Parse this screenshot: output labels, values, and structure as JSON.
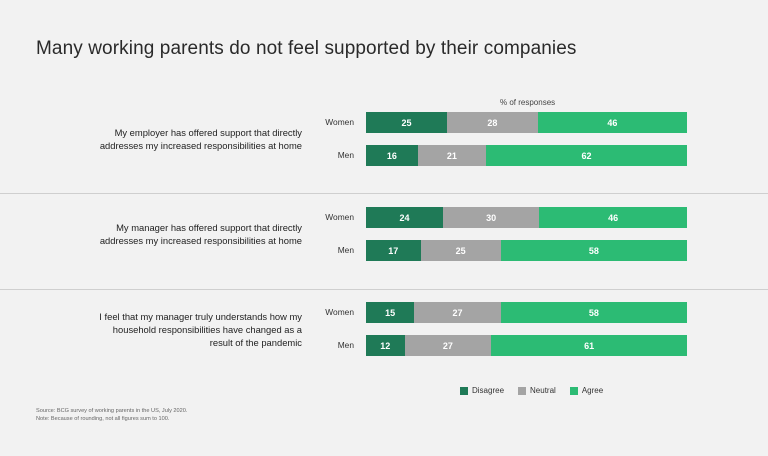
{
  "title": "Many working parents do not feel supported by their companies",
  "axis_label": "% of responses",
  "colors": {
    "Disagree": "#1f7a57",
    "Neutral": "#a4a4a4",
    "Agree": "#2cbb74"
  },
  "legend": [
    "Disagree",
    "Neutral",
    "Agree"
  ],
  "source_lines": [
    "Source: BCG survey of working parents in the US, July 2020.",
    "Note: Because of rounding, not all figures sum to 100."
  ],
  "chart_data": {
    "type": "bar",
    "orientation": "horizontal",
    "stacked": true,
    "series_names": [
      "Disagree",
      "Neutral",
      "Agree"
    ],
    "groups": [
      {
        "question_lines": [
          "My employer has offered support that directly",
          "addresses my increased responsibilities at home"
        ],
        "rows": [
          {
            "label": "Women",
            "values": [
              25,
              28,
              46
            ]
          },
          {
            "label": "Men",
            "values": [
              16,
              21,
              62
            ]
          }
        ]
      },
      {
        "question_lines": [
          "My manager has offered support that directly",
          "addresses my increased responsibilities at home"
        ],
        "rows": [
          {
            "label": "Women",
            "values": [
              24,
              30,
              46
            ]
          },
          {
            "label": "Men",
            "values": [
              17,
              25,
              58
            ]
          }
        ]
      },
      {
        "question_lines": [
          "I feel that my manager truly understands how my",
          "household responsibilities have changed as a",
          "result of the pandemic"
        ],
        "rows": [
          {
            "label": "Women",
            "values": [
              15,
              27,
              58
            ]
          },
          {
            "label": "Men",
            "values": [
              12,
              27,
              61
            ]
          }
        ]
      }
    ]
  }
}
